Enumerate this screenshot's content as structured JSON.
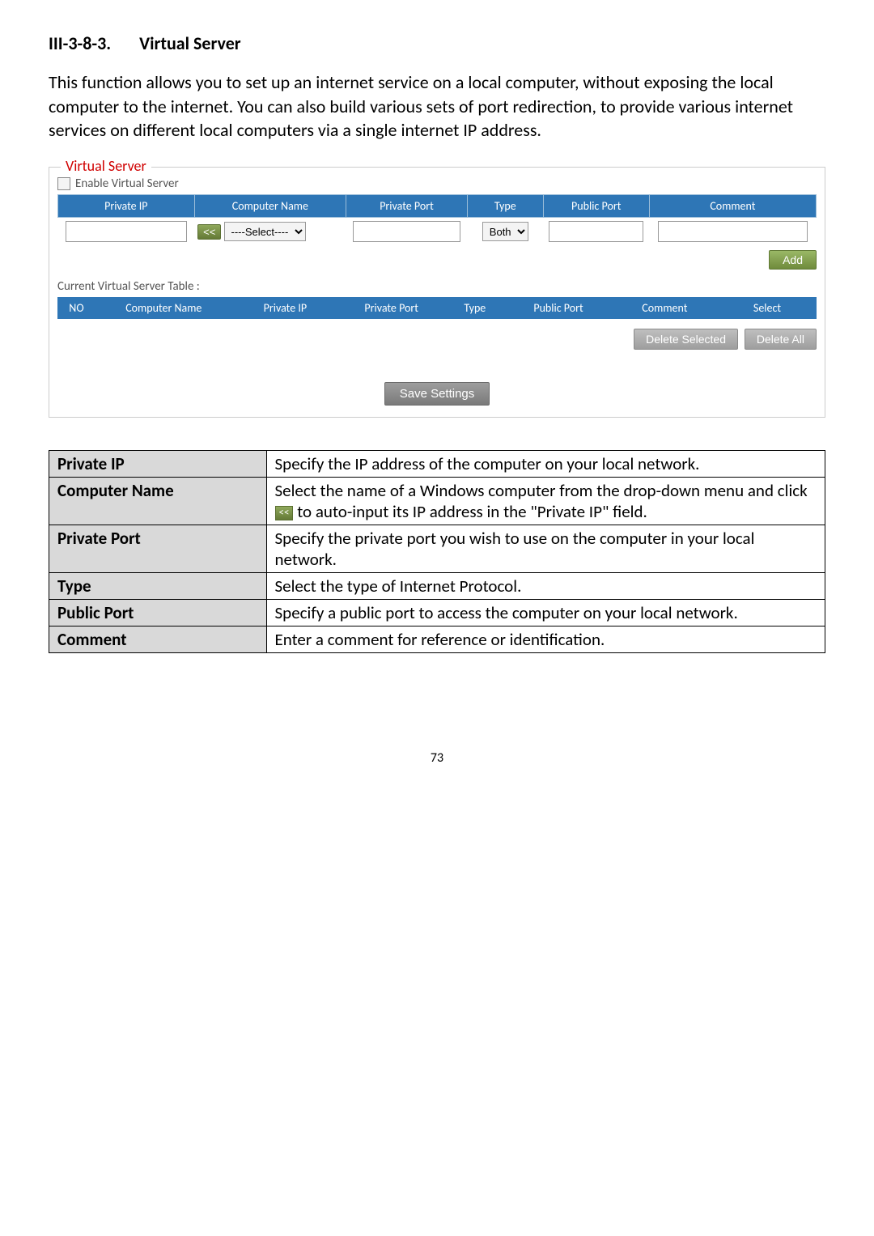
{
  "section": {
    "number": "III-3-8-3.",
    "title": "Virtual Server"
  },
  "intro": "This function allows you to set up an internet service on a local computer, without exposing the local computer to the internet. You can also build various sets of port redirection, to provide various internet services on different local computers via a single internet IP address.",
  "screenshot": {
    "fieldset_title": "Virtual Server",
    "enable_label": "Enable  Virtual Server",
    "headers": {
      "private_ip": "Private IP",
      "computer_name": "Computer Name",
      "private_port": "Private Port",
      "type": "Type",
      "public_port": "Public Port",
      "comment": "Comment"
    },
    "select_placeholder": "----Select----",
    "type_option": "Both",
    "auto_btn": "<<",
    "add_btn": "Add",
    "current_label": "Current Virtual Server Table :",
    "current_headers": {
      "no": "NO",
      "computer_name": "Computer Name",
      "private_ip": "Private IP",
      "private_port": "Private Port",
      "type": "Type",
      "public_port": "Public Port",
      "comment": "Comment",
      "select": "Select"
    },
    "delete_selected": "Delete Selected",
    "delete_all": "Delete All",
    "save": "Save Settings"
  },
  "definitions": [
    {
      "label": "Private IP",
      "desc_lines": [
        "Specify the IP address of the computer on your local network."
      ],
      "has_icon": false
    },
    {
      "label": "Computer Name",
      "desc_lines": [
        "Select the name of a Windows computer from the drop-down menu and click ",
        " to auto-input its IP address in the \"Private IP\" field."
      ],
      "has_icon": true,
      "icon_text": "<<"
    },
    {
      "label": "Private Port",
      "desc_lines": [
        "Specify the private port you wish to use on the computer in your local network."
      ],
      "has_icon": false
    },
    {
      "label": "Type",
      "desc_lines": [
        "Select the type of Internet Protocol."
      ],
      "has_icon": false
    },
    {
      "label": "Public Port",
      "desc_lines": [
        "Specify a public port to access the computer on your local network."
      ],
      "has_icon": false
    },
    {
      "label": "Comment",
      "desc_lines": [
        "Enter a comment for reference or identification."
      ],
      "has_icon": false
    }
  ],
  "page_number": "73"
}
